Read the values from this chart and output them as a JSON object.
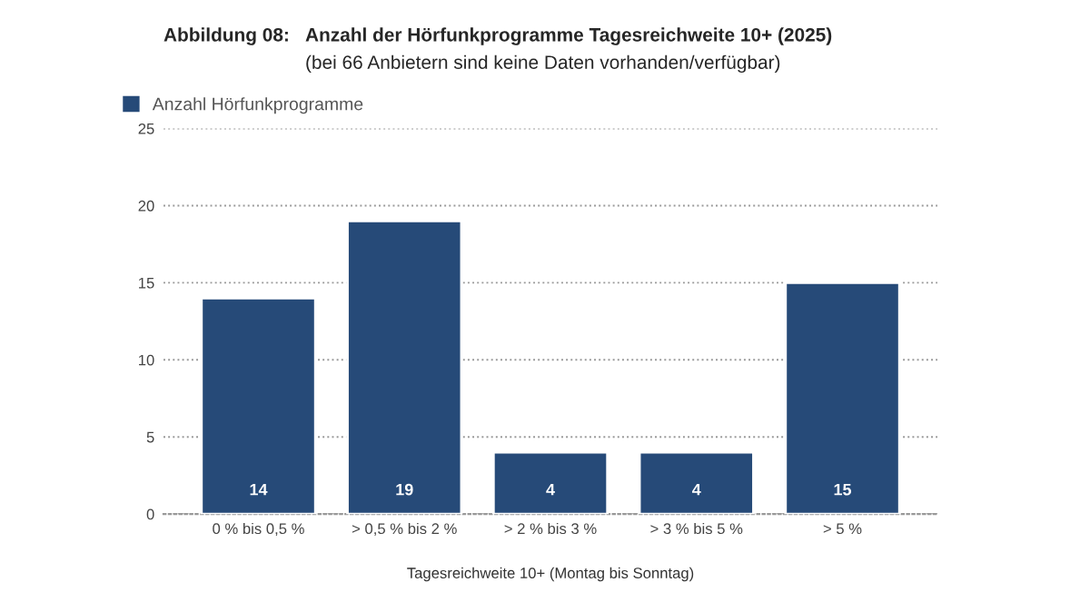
{
  "chart_data": {
    "type": "bar",
    "title": "Anzahl der Hörfunkprogramme Tagesreichweite 10+ (2025)",
    "subtitle": "(bei 66 Anbietern sind keine Daten vorhanden/verfügbar)",
    "annotations": [
      "Abbildung 08:"
    ],
    "xlabel": "Tagesreichweite 10+ (Montag bis Sonntag)",
    "categories": [
      "0 % bis 0,5 %",
      "> 0,5 % bis 2 %",
      "> 2 % bis 3 %",
      "> 3 % bis 5 %",
      "> 5 %"
    ],
    "series": [
      {
        "name": "Anzahl Hörfunkprogramme",
        "color": "#264a78",
        "values": [
          14,
          19,
          4,
          4,
          15
        ]
      }
    ],
    "ylim": [
      0,
      25
    ],
    "yticks": [
      0,
      5,
      10,
      15,
      20,
      25
    ],
    "grid": "y",
    "legend": "top left",
    "data_labels": true
  }
}
